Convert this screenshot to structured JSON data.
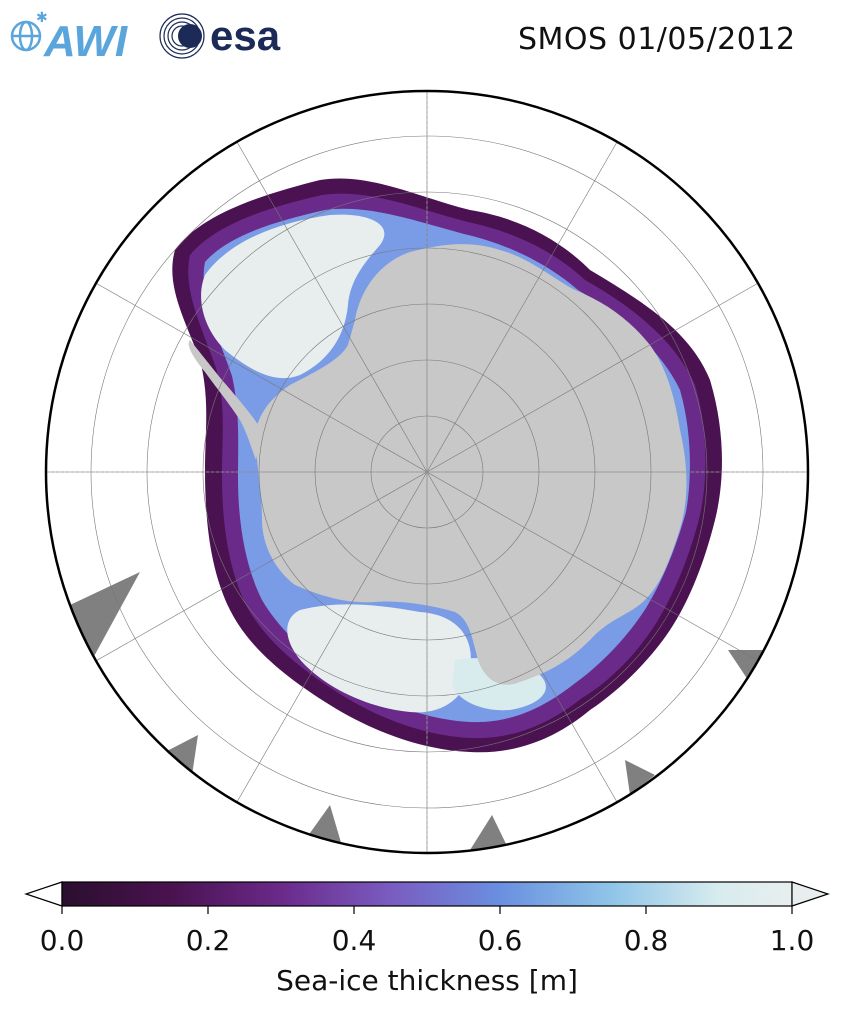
{
  "title": "SMOS 01/05/2012",
  "logos": {
    "awi_text": "AWI",
    "esa_text": "esa",
    "awi_color": "#5aa6dc",
    "esa_color": "#1c2a57"
  },
  "map": {
    "projection": "south-polar-stereographic",
    "land_color": "#c8c8c8",
    "missing_data_color": "#808080",
    "ocean_color": "#ffffff",
    "gridlines": "dotted-gray"
  },
  "colorbar": {
    "label": "Sea-ice thickness [m]",
    "ticks": [
      "0.0",
      "0.2",
      "0.4",
      "0.6",
      "0.8",
      "1.0"
    ],
    "vmin": 0.0,
    "vmax": 1.0,
    "extend": "both",
    "colormap": [
      "#2a0f2e",
      "#4a1250",
      "#6a2a8a",
      "#7a5cc0",
      "#6a8fe0",
      "#8ec4e8",
      "#d8ecee",
      "#e8eeee"
    ]
  }
}
